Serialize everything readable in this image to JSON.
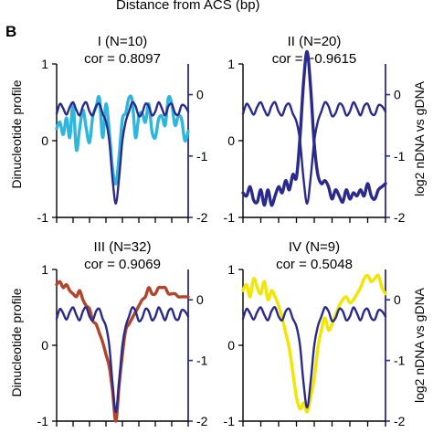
{
  "header": {
    "caption": "Distance from ACS (bp)",
    "panel_letter": "B"
  },
  "axis_labels": {
    "left": "Dinucleotide profile",
    "right": "log2 nDNA vs gDNA"
  },
  "colors": {
    "profile_navy": "#2a2a8c"
  },
  "chart_data": [
    {
      "type": "line",
      "title": "I (N=10)",
      "subtitle": "cor = 0.8097",
      "color": "#2fb6dc",
      "xlabel": "Distance from ACS (bp)",
      "ylabel_left": "Dinucleotide profile",
      "ylabel_right": "log2 nDNA vs gDNA",
      "ylim_left": [
        -1,
        1
      ],
      "ylim_right": [
        -2,
        0.5
      ],
      "yticks_left": [
        "1",
        "0",
        "-1"
      ],
      "yticks_right": [
        "0",
        "-1",
        "-2"
      ],
      "x": [
        0,
        1,
        2,
        3,
        4,
        5,
        6,
        7,
        8,
        9,
        10,
        11,
        12,
        13,
        14,
        15,
        16,
        17,
        18,
        19,
        20,
        21,
        22,
        23,
        24,
        25,
        26,
        27,
        28,
        29,
        30,
        31,
        32,
        33,
        34,
        35,
        36,
        37,
        38,
        39,
        40
      ],
      "series": [
        {
          "axis": "left",
          "color": "#2a2a8c",
          "values": [
            0.35,
            0.48,
            0.42,
            0.34,
            0.44,
            0.5,
            0.4,
            0.33,
            0.45,
            0.5,
            0.38,
            0.33,
            0.45,
            0.48,
            0.35,
            0.25,
            0.0,
            -0.5,
            -0.82,
            -0.48,
            0.0,
            0.25,
            0.38,
            0.5,
            0.45,
            0.32,
            0.36,
            0.48,
            0.45,
            0.33,
            0.38,
            0.5,
            0.42,
            0.33,
            0.45,
            0.48,
            0.36,
            0.34,
            0.46,
            0.45,
            0.38
          ]
        },
        {
          "axis": "right",
          "color": "#2fb6dc",
          "values": [
            -0.55,
            -0.45,
            -0.65,
            -0.38,
            -0.7,
            -0.15,
            -0.9,
            -0.55,
            -0.25,
            -0.55,
            -0.78,
            -0.35,
            -0.2,
            -0.05,
            -0.7,
            -0.15,
            -0.6,
            -1.2,
            -1.45,
            -1.0,
            -0.4,
            -0.3,
            -0.05,
            -0.1,
            -0.7,
            -0.35,
            -0.3,
            -0.45,
            -0.15,
            -0.6,
            -0.7,
            -0.4,
            -0.35,
            -0.5,
            -0.05,
            -0.15,
            -0.5,
            -0.35,
            -0.4,
            -0.75,
            -0.6
          ]
        }
      ]
    },
    {
      "type": "line",
      "title": "II (N=20)",
      "subtitle": "cor = −0.9615",
      "color": "#2a2a8c",
      "xlabel": "Distance from ACS (bp)",
      "ylabel_left": "Dinucleotide profile",
      "ylabel_right": "log2 nDNA vs gDNA",
      "ylim_left": [
        -1,
        1
      ],
      "ylim_right": [
        -2,
        0.5
      ],
      "yticks_left": [
        "1",
        "0",
        "-1"
      ],
      "yticks_right": [
        "0",
        "-1",
        "-2"
      ],
      "x": [
        0,
        1,
        2,
        3,
        4,
        5,
        6,
        7,
        8,
        9,
        10,
        11,
        12,
        13,
        14,
        15,
        16,
        17,
        18,
        19,
        20,
        21,
        22,
        23,
        24,
        25,
        26,
        27,
        28,
        29,
        30,
        31,
        32,
        33,
        34,
        35,
        36,
        37,
        38,
        39,
        40
      ],
      "series": [
        {
          "axis": "left",
          "color": "#2a2a8c",
          "values": [
            0.35,
            0.48,
            0.42,
            0.34,
            0.44,
            0.5,
            0.4,
            0.33,
            0.45,
            0.5,
            0.38,
            0.33,
            0.45,
            0.48,
            0.35,
            0.25,
            0.0,
            -0.5,
            -0.82,
            -0.48,
            0.0,
            0.25,
            0.38,
            0.5,
            0.45,
            0.32,
            0.36,
            0.48,
            0.45,
            0.33,
            0.38,
            0.5,
            0.42,
            0.33,
            0.45,
            0.48,
            0.36,
            0.34,
            0.46,
            0.45,
            0.38
          ]
        },
        {
          "axis": "right",
          "color": "#2a2a8c",
          "values": [
            -1.6,
            -1.65,
            -1.5,
            -1.72,
            -1.75,
            -1.55,
            -1.8,
            -1.55,
            -1.8,
            -1.65,
            -1.5,
            -1.6,
            -1.4,
            -1.55,
            -1.3,
            -1.35,
            -0.7,
            0.2,
            0.7,
            0.1,
            -0.8,
            -1.3,
            -1.45,
            -1.4,
            -1.5,
            -1.7,
            -1.55,
            -1.65,
            -1.75,
            -1.55,
            -1.7,
            -1.6,
            -1.65,
            -1.55,
            -1.65,
            -1.45,
            -1.65,
            -1.7,
            -1.55,
            -1.5,
            -1.45
          ]
        }
      ]
    },
    {
      "type": "line",
      "title": "III (N=32)",
      "subtitle": "cor = 0.9069",
      "color": "#b0452c",
      "xlabel": "Distance from ACS (bp)",
      "ylabel_left": "Dinucleotide profile",
      "ylabel_right": "log2 nDNA vs gDNA",
      "ylim_left": [
        -1,
        1
      ],
      "ylim_right": [
        -2,
        0.5
      ],
      "yticks_left": [
        "1",
        "0",
        "-1"
      ],
      "yticks_right": [
        "0",
        "-1",
        "-2"
      ],
      "x": [
        0,
        1,
        2,
        3,
        4,
        5,
        6,
        7,
        8,
        9,
        10,
        11,
        12,
        13,
        14,
        15,
        16,
        17,
        18,
        19,
        20,
        21,
        22,
        23,
        24,
        25,
        26,
        27,
        28,
        29,
        30,
        31,
        32,
        33,
        34,
        35,
        36,
        37,
        38,
        39,
        40
      ],
      "series": [
        {
          "axis": "left",
          "color": "#2a2a8c",
          "values": [
            0.35,
            0.48,
            0.42,
            0.34,
            0.44,
            0.5,
            0.4,
            0.33,
            0.45,
            0.5,
            0.38,
            0.33,
            0.45,
            0.48,
            0.35,
            0.25,
            0.0,
            -0.5,
            -0.88,
            -0.48,
            0.0,
            0.25,
            0.38,
            0.5,
            0.45,
            0.32,
            0.36,
            0.48,
            0.45,
            0.33,
            0.38,
            0.5,
            0.42,
            0.33,
            0.45,
            0.48,
            0.36,
            0.34,
            0.46,
            0.45,
            0.38
          ]
        },
        {
          "axis": "right",
          "color": "#b0452c",
          "values": [
            0.25,
            0.3,
            0.2,
            0.25,
            0.15,
            0.1,
            0.05,
            0.15,
            0.0,
            -0.1,
            -0.15,
            -0.35,
            -0.4,
            -0.55,
            -0.7,
            -0.9,
            -1.1,
            -1.5,
            -2.0,
            -1.4,
            -0.9,
            -0.5,
            -0.4,
            -0.3,
            -0.2,
            -0.1,
            0.0,
            0.05,
            0.2,
            0.1,
            0.1,
            0.2,
            0.2,
            0.2,
            0.1,
            0.1,
            0.1,
            0.05,
            0.05,
            0.05,
            0.05
          ]
        }
      ]
    },
    {
      "type": "line",
      "title": "IV (N=9)",
      "subtitle": "cor = 0.5048",
      "color": "#f2e600",
      "xlabel": "Distance from ACS (bp)",
      "ylabel_left": "Dinucleotide profile",
      "ylabel_right": "log2 nDNA vs gDNA",
      "ylim_left": [
        -1,
        1
      ],
      "ylim_right": [
        -2,
        0.5
      ],
      "yticks_left": [
        "1",
        "0",
        "-1"
      ],
      "yticks_right": [
        "0",
        "-1",
        "-2"
      ],
      "x": [
        0,
        1,
        2,
        3,
        4,
        5,
        6,
        7,
        8,
        9,
        10,
        11,
        12,
        13,
        14,
        15,
        16,
        17,
        18,
        19,
        20,
        21,
        22,
        23,
        24,
        25,
        26,
        27,
        28,
        29,
        30,
        31,
        32,
        33,
        34,
        35,
        36,
        37,
        38,
        39,
        40
      ],
      "series": [
        {
          "axis": "left",
          "color": "#2a2a8c",
          "values": [
            0.35,
            0.48,
            0.42,
            0.34,
            0.44,
            0.5,
            0.4,
            0.33,
            0.45,
            0.5,
            0.38,
            0.33,
            0.45,
            0.48,
            0.35,
            0.25,
            0.0,
            -0.5,
            -0.82,
            -0.48,
            0.0,
            0.25,
            0.38,
            0.5,
            0.45,
            0.32,
            0.36,
            0.48,
            0.45,
            0.33,
            0.38,
            0.5,
            0.42,
            0.33,
            0.45,
            0.48,
            0.36,
            0.34,
            0.46,
            0.45,
            0.38
          ]
        },
        {
          "axis": "right",
          "color": "#f2e600",
          "values": [
            0.15,
            0.25,
            0.05,
            0.35,
            0.2,
            0.1,
            0.3,
            0.0,
            0.15,
            0.05,
            -0.1,
            -0.3,
            -0.55,
            -0.8,
            -1.2,
            -1.6,
            -1.8,
            -1.7,
            -1.85,
            -1.6,
            -1.3,
            -0.8,
            -0.5,
            -0.3,
            -0.5,
            -0.4,
            -0.25,
            -0.1,
            0.0,
            0.05,
            -0.05,
            0.0,
            0.1,
            0.2,
            0.35,
            0.4,
            0.3,
            0.35,
            0.4,
            0.2,
            0.1
          ]
        }
      ]
    }
  ]
}
